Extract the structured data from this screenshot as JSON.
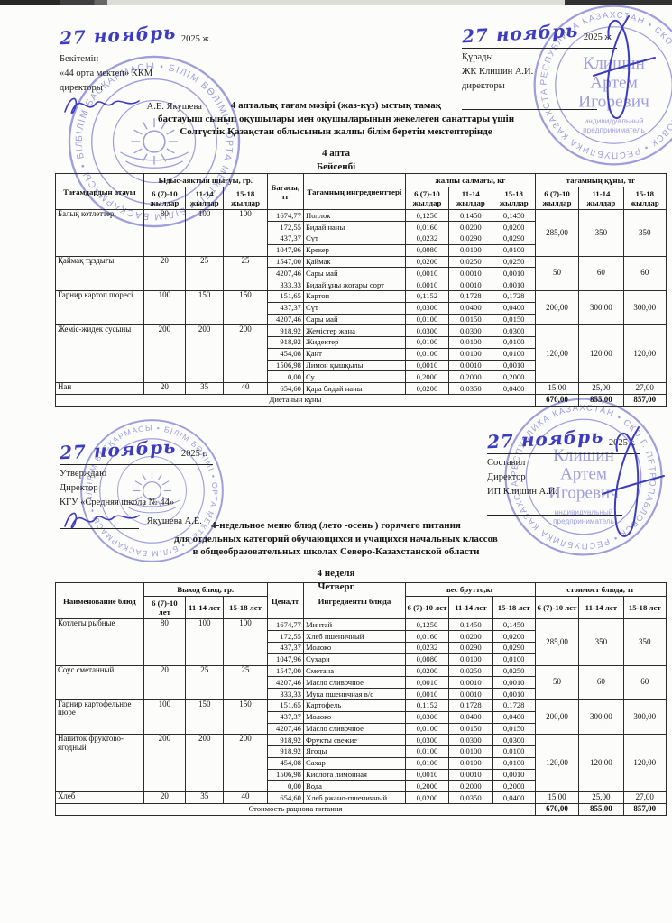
{
  "document": {
    "approvals": {
      "top_left": {
        "date_hand": "27 ноябрь",
        "date_print": "2025 ж.",
        "line1": "Бекітемін",
        "line2": "«44 орта мектеп» ККМ",
        "line3": "директоры",
        "signer": "А.Е. Якушева"
      },
      "top_right": {
        "date_hand": "27 ноябрь",
        "date_print": "2025 ж",
        "line1": "Құрады",
        "line2": "ЖК Клишин А.И.",
        "line3": "директоры"
      },
      "mid_left": {
        "date_hand": "27 ноябрь",
        "date_print": "2025 г.",
        "line1": "Утверждаю",
        "line2": "Директор",
        "line3": "КГУ «Средняя школа № 44»",
        "signer": "Якушева А.Е."
      },
      "mid_right": {
        "date_hand": "27 ноябрь",
        "date_print": "2025 г.",
        "line1": "Составил",
        "line2": "Директор",
        "line3": "ИП Клишин А.И."
      }
    },
    "stamps": {
      "school": {
        "ring": "БІЛІМ БАСҚАРМАСЫ • БІЛІМ БӨЛІМІ • ОРТА МЕКТЕП • ",
        "color": "#5253c6"
      },
      "entrepreneur": {
        "ring": "РЕСПУБЛИКА КАЗАХСТАН • СКО Г. ПЕТРОПАВЛОВСК • ",
        "center": [
          "Клишин",
          "Артем",
          "Игоревич"
        ],
        "sub": [
          "индивидуальный",
          "предприниматель"
        ],
        "color": "#5253c6"
      }
    },
    "menu_kz": {
      "title1": "4 апталық тағам мәзірі (жаз-күз) ыстық тамақ",
      "title2": "бастауыш сынып оқушылары мен оқушыларынын жекелеген санаттары үшін",
      "title3": "Солтүстік Қазақстан облысынын жалпы білім беретін мектептерінде",
      "week": "4 апта",
      "day": "Бейсенбі",
      "table": {
        "headers": {
          "name": "Тағамдардын атауы",
          "out": "Ыдыс-аяктын шығуы, гр.",
          "price": "Бағасы, тг",
          "ingredients": "Тағамның ингредиенттері",
          "weight": "жалпы салмағы, кг",
          "cost": "тағамның құны, тг",
          "ages": [
            "6 (7)-10 жылдар",
            "11-14 жылдар",
            "15-18 жылдар"
          ]
        },
        "dishes": [
          {
            "name": "Балық котлеттері",
            "out": [
              "80",
              "100",
              "100"
            ],
            "cost": [
              "285,00",
              "350",
              "350"
            ],
            "ingredients": [
              [
                "1674,77",
                "Поллок",
                [
                  "0,1250",
                  "0,1450",
                  "0,1450"
                ]
              ],
              [
                "172,55",
                "Бидай наны",
                [
                  "0,0160",
                  "0,0200",
                  "0,0200"
                ]
              ],
              [
                "437,37",
                "Сүт",
                [
                  "0,0232",
                  "0,0290",
                  "0,0290"
                ]
              ],
              [
                "1047,96",
                "Крекер",
                [
                  "0,0080",
                  "0,0100",
                  "0,0100"
                ]
              ]
            ]
          },
          {
            "name": "Қаймақ тұздығы",
            "out": [
              "20",
              "25",
              "25"
            ],
            "cost": [
              "50",
              "60",
              "60"
            ],
            "ingredients": [
              [
                "1547,00",
                "Қаймак",
                [
                  "0,0200",
                  "0,0250",
                  "0,0250"
                ]
              ],
              [
                "4207,46",
                "Сары май",
                [
                  "0,0010",
                  "0,0010",
                  "0,0010"
                ]
              ],
              [
                "333,33",
                "Бидай ұны жоғары сорт",
                [
                  "0,0010",
                  "0,0010",
                  "0,0010"
                ]
              ]
            ]
          },
          {
            "name": "Гарнир картоп пюресі",
            "out": [
              "100",
              "150",
              "150"
            ],
            "cost": [
              "200,00",
              "300,00",
              "300,00"
            ],
            "ingredients": [
              [
                "151,65",
                "Картоп",
                [
                  "0,1152",
                  "0,1728",
                  "0,1728"
                ]
              ],
              [
                "437,37",
                "Сүт",
                [
                  "0,0300",
                  "0,0400",
                  "0,0400"
                ]
              ],
              [
                "4207,46",
                "Сары май",
                [
                  "0,0100",
                  "0,0150",
                  "0,0150"
                ]
              ]
            ]
          },
          {
            "name": "Жеміс-жидек сусыны",
            "out": [
              "200",
              "200",
              "200"
            ],
            "cost": [
              "120,00",
              "120,00",
              "120,00"
            ],
            "ingredients": [
              [
                "918,92",
                "Жемістер жана",
                [
                  "0,0300",
                  "0,0300",
                  "0,0300"
                ]
              ],
              [
                "918,92",
                "Жидектер",
                [
                  "0,0100",
                  "0,0100",
                  "0,0100"
                ]
              ],
              [
                "454,08",
                "Қант",
                [
                  "0,0100",
                  "0,0100",
                  "0,0100"
                ]
              ],
              [
                "1506,98",
                "Лимон қышқылы",
                [
                  "0,0010",
                  "0,0010",
                  "0,0010"
                ]
              ],
              [
                "0,00",
                "Су",
                [
                  "0,2000",
                  "0,2000",
                  "0,2000"
                ]
              ]
            ]
          },
          {
            "name": "Нан",
            "out": [
              "20",
              "35",
              "40"
            ],
            "cost": [
              "15,00",
              "25,00",
              "27,00"
            ],
            "ingredients": [
              [
                "654,60",
                "Қара бидай наны",
                [
                  "0,0200",
                  "0,0350",
                  "0,0400"
                ]
              ]
            ]
          }
        ],
        "footer": {
          "label": "Диетанын құны",
          "totals": [
            "670,00",
            "855,00",
            "857,00"
          ]
        }
      }
    },
    "menu_ru": {
      "title1": "4-недельное меню блюд (лето -осень ) горячего питания",
      "title2": "для отдельных категорий обучающихся и учащихся начальных классов",
      "title3": "в общеобразовательных школах Северо-Казахстанской области",
      "week": "4 неделя",
      "day": "Четверг",
      "table": {
        "headers": {
          "name": "Наименование блюд",
          "out": "Выход блюд, гр.",
          "price": "Цена,тг",
          "ingredients": "Ингредиенты блюда",
          "weight": "вес брутто,кг",
          "cost": "стоимост блюда, тг",
          "ages": [
            "6 (7)-10 лет",
            "11-14 лет",
            "15-18 лет"
          ]
        },
        "dishes": [
          {
            "name": "Котлеты рыбные",
            "out": [
              "80",
              "100",
              "100"
            ],
            "cost": [
              "285,00",
              "350",
              "350"
            ],
            "ingredients": [
              [
                "1674,77",
                "Минтай",
                [
                  "0,1250",
                  "0,1450",
                  "0,1450"
                ]
              ],
              [
                "172,55",
                "Хлеб пшеничный",
                [
                  "0,0160",
                  "0,0200",
                  "0,0200"
                ]
              ],
              [
                "437,37",
                "Молоко",
                [
                  "0,0232",
                  "0,0290",
                  "0,0290"
                ]
              ],
              [
                "1047,96",
                "Сухари",
                [
                  "0,0080",
                  "0,0100",
                  "0,0100"
                ]
              ]
            ]
          },
          {
            "name": "Соус сметанный",
            "out": [
              "20",
              "25",
              "25"
            ],
            "cost": [
              "50",
              "60",
              "60"
            ],
            "ingredients": [
              [
                "1547,00",
                "Сметана",
                [
                  "0,0200",
                  "0,0250",
                  "0,0250"
                ]
              ],
              [
                "4207,46",
                "Масло сливочное",
                [
                  "0,0010",
                  "0,0010",
                  "0,0010"
                ]
              ],
              [
                "333,33",
                "Мука пшеничная в/с",
                [
                  "0,0010",
                  "0,0010",
                  "0,0010"
                ]
              ]
            ]
          },
          {
            "name": "Гарнир картофельное пюре",
            "out": [
              "100",
              "150",
              "150"
            ],
            "cost": [
              "200,00",
              "300,00",
              "300,00"
            ],
            "ingredients": [
              [
                "151,65",
                "Картофель",
                [
                  "0,1152",
                  "0,1728",
                  "0,1728"
                ]
              ],
              [
                "437,37",
                "Молоко",
                [
                  "0,0300",
                  "0,0400",
                  "0,0400"
                ]
              ],
              [
                "4207,46",
                "Масло сливочное",
                [
                  "0,0100",
                  "0,0150",
                  "0,0150"
                ]
              ]
            ]
          },
          {
            "name": "Напиток фруктово-ягодный",
            "out": [
              "200",
              "200",
              "200"
            ],
            "cost": [
              "120,00",
              "120,00",
              "120,00"
            ],
            "ingredients": [
              [
                "918,92",
                "Фрукты свежие",
                [
                  "0,0300",
                  "0,0300",
                  "0,0300"
                ]
              ],
              [
                "918,92",
                "Ягоды",
                [
                  "0,0100",
                  "0,0100",
                  "0,0100"
                ]
              ],
              [
                "454,08",
                "Сахар",
                [
                  "0,0100",
                  "0,0100",
                  "0,0100"
                ]
              ],
              [
                "1506,98",
                "Кислота лимонная",
                [
                  "0,0010",
                  "0,0010",
                  "0,0010"
                ]
              ],
              [
                "0,00",
                "Вода",
                [
                  "0,2000",
                  "0,2000",
                  "0,2000"
                ]
              ]
            ]
          },
          {
            "name": "Хлеб",
            "out": [
              "20",
              "35",
              "40"
            ],
            "cost": [
              "15,00",
              "25,00",
              "27,00"
            ],
            "ingredients": [
              [
                "654,60",
                "Хлеб ржано-пшеничный",
                [
                  "0,0200",
                  "0,0350",
                  "0,0400"
                ]
              ]
            ]
          }
        ],
        "footer": {
          "label": "Стоимость рациона питания",
          "totals": [
            "670,00",
            "855,00",
            "857,00"
          ]
        }
      }
    }
  }
}
